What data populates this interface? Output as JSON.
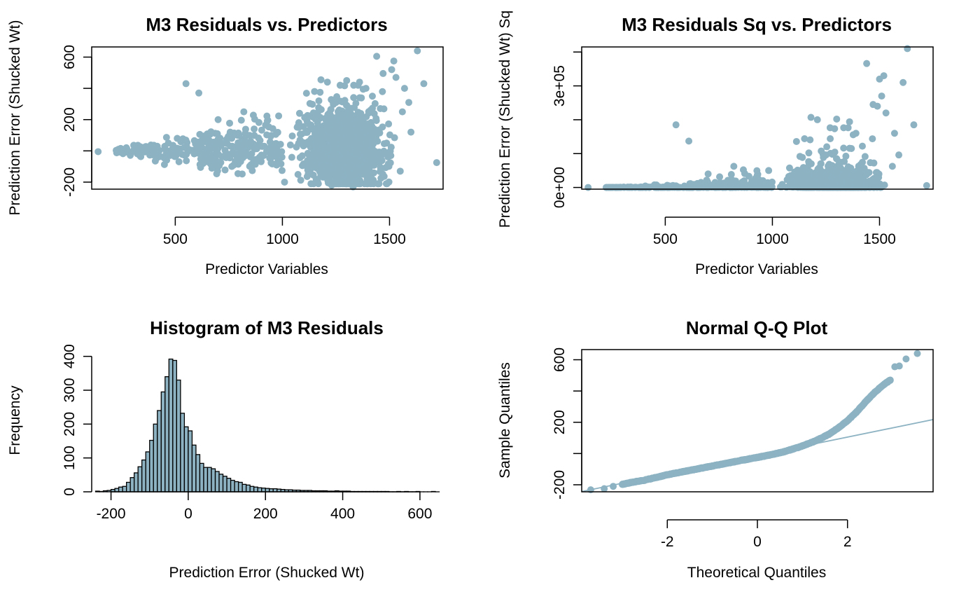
{
  "colors": {
    "point": "#8DB3C3",
    "bar_fill": "#8DB3C3",
    "axis": "#000000",
    "ref_line": "#8DB3C3"
  },
  "chart_data": [
    {
      "id": "p1",
      "type": "scatter",
      "title": "M3 Residuals vs. Predictors",
      "xlabel": "Predictor Variables",
      "ylabel": "Prediction Error (Shucked Wt)",
      "xlim": [
        110,
        1750
      ],
      "ylim": [
        -245,
        665
      ],
      "xticks": [
        500,
        1000,
        1500
      ],
      "xtick_labels": [
        "500",
        "1000",
        "1500"
      ],
      "yticks": [
        -200,
        0,
        200,
        400,
        600
      ],
      "ytick_labels": [
        "-200",
        "",
        "200",
        "",
        "600"
      ],
      "grid": false,
      "cloud": {
        "n": 4177,
        "x_range": [
          220,
          1640
        ],
        "x_mode": 1200,
        "spread_model": "sd = 5 + 0.11 * (x - 220)",
        "right_skew": true
      },
      "points": [
        {
          "x": 140,
          "y": -5
        },
        {
          "x": 550,
          "y": 430
        },
        {
          "x": 610,
          "y": 370
        },
        {
          "x": 700,
          "y": 200
        },
        {
          "x": 820,
          "y": 250
        },
        {
          "x": 1550,
          "y": -130
        },
        {
          "x": 1600,
          "y": 120
        },
        {
          "x": 1720,
          "y": -75
        },
        {
          "x": 1630,
          "y": 640
        },
        {
          "x": 1440,
          "y": 605
        },
        {
          "x": 1520,
          "y": 575
        },
        {
          "x": 1660,
          "y": 430
        },
        {
          "x": 1510,
          "y": 520
        },
        {
          "x": 1470,
          "y": 495
        },
        {
          "x": 1530,
          "y": 470
        },
        {
          "x": 1360,
          "y": 440
        },
        {
          "x": 1390,
          "y": 400
        },
        {
          "x": 1180,
          "y": 455
        },
        {
          "x": 1210,
          "y": 440
        },
        {
          "x": 1300,
          "y": 450
        },
        {
          "x": 1080,
          "y": 240
        },
        {
          "x": 1120,
          "y": 220
        },
        {
          "x": 1150,
          "y": 380
        },
        {
          "x": 1170,
          "y": 320
        },
        {
          "x": 1250,
          "y": 310
        },
        {
          "x": 1010,
          "y": -200
        },
        {
          "x": 1230,
          "y": -220
        },
        {
          "x": 1330,
          "y": -230
        },
        {
          "x": 1360,
          "y": -190
        },
        {
          "x": 1460,
          "y": -175
        },
        {
          "x": 1570,
          "y": 400
        },
        {
          "x": 1590,
          "y": 310
        },
        {
          "x": 1560,
          "y": 250
        },
        {
          "x": 1420,
          "y": 350
        }
      ]
    },
    {
      "id": "p2",
      "type": "scatter",
      "title": "M3 Residuals Sq vs. Predictors",
      "xlabel": "Predictor Variables",
      "ylabel": "Prediction Error (Shucked Wt) Sq",
      "xlim": [
        110,
        1750
      ],
      "ylim": [
        -5000,
        415000
      ],
      "xticks": [
        500,
        1000,
        1500
      ],
      "xtick_labels": [
        "500",
        "1000",
        "1500"
      ],
      "yticks": [
        0,
        100000,
        200000,
        300000,
        400000
      ],
      "ytick_labels": [
        "0e+00",
        "",
        "",
        "3e+05",
        ""
      ],
      "grid": false,
      "note": "squared residuals of panel 1",
      "points": [
        {
          "x": 1630,
          "y": 410000
        },
        {
          "x": 1440,
          "y": 366000
        },
        {
          "x": 1520,
          "y": 330000
        },
        {
          "x": 1610,
          "y": 310000
        },
        {
          "x": 1500,
          "y": 320000
        },
        {
          "x": 1660,
          "y": 185000
        },
        {
          "x": 1470,
          "y": 245000
        },
        {
          "x": 1530,
          "y": 220000
        },
        {
          "x": 1360,
          "y": 194000
        },
        {
          "x": 1390,
          "y": 160000
        },
        {
          "x": 1180,
          "y": 207000
        },
        {
          "x": 1210,
          "y": 200000
        },
        {
          "x": 1300,
          "y": 202000
        },
        {
          "x": 550,
          "y": 185000
        },
        {
          "x": 610,
          "y": 137000
        },
        {
          "x": 820,
          "y": 62500
        },
        {
          "x": 700,
          "y": 40000
        },
        {
          "x": 1150,
          "y": 144000
        },
        {
          "x": 1420,
          "y": 122000
        },
        {
          "x": 1570,
          "y": 160000
        },
        {
          "x": 1590,
          "y": 96000
        },
        {
          "x": 1250,
          "y": 96000
        },
        {
          "x": 1170,
          "y": 102000
        },
        {
          "x": 1080,
          "y": 57600
        },
        {
          "x": 1720,
          "y": 5600
        },
        {
          "x": 140,
          "y": 25
        },
        {
          "x": 1560,
          "y": 62500
        },
        {
          "x": 1490,
          "y": 240000
        },
        {
          "x": 1270,
          "y": 144000
        },
        {
          "x": 1510,
          "y": 270000
        }
      ]
    },
    {
      "id": "p3",
      "type": "bar",
      "subtype": "histogram",
      "title": "Histogram of M3 Residuals",
      "xlabel": "Prediction Error (Shucked Wt)",
      "ylabel": "Frequency",
      "bin_width": 10,
      "bin_start": -240,
      "xlim": [
        -250,
        660
      ],
      "ylim": [
        0,
        420
      ],
      "xticks": [
        -200,
        0,
        200,
        400,
        600
      ],
      "xtick_labels": [
        "-200",
        "0",
        "200",
        "400",
        "600"
      ],
      "yticks": [
        0,
        100,
        200,
        300,
        400
      ],
      "ytick_labels": [
        "0",
        "100",
        "200",
        "300",
        "400"
      ],
      "values": [
        2,
        1,
        3,
        4,
        7,
        10,
        14,
        16,
        28,
        42,
        56,
        74,
        94,
        118,
        152,
        200,
        240,
        295,
        340,
        392,
        388,
        330,
        232,
        192,
        180,
        138,
        110,
        84,
        72,
        72,
        68,
        60,
        52,
        46,
        40,
        34,
        30,
        28,
        22,
        20,
        16,
        14,
        12,
        11,
        10,
        9,
        9,
        8,
        7,
        6,
        6,
        5,
        5,
        4,
        4,
        4,
        3,
        3,
        3,
        3,
        2,
        2,
        3,
        2,
        2,
        2,
        1,
        1,
        1,
        1,
        1,
        1,
        1,
        1,
        1,
        1,
        0,
        0,
        1,
        0,
        1,
        0,
        0,
        1,
        0,
        0,
        0,
        1,
        0
      ]
    },
    {
      "id": "p4",
      "type": "scatter",
      "title": "Normal Q-Q Plot",
      "xlabel": "Theoretical Quantiles",
      "ylabel": "Sample Quantiles",
      "xlim": [
        -3.9,
        3.9
      ],
      "ylim": [
        -245,
        665
      ],
      "xticks": [
        -2,
        0,
        2
      ],
      "xtick_labels": [
        "-2",
        "0",
        "2"
      ],
      "yticks": [
        -200,
        0,
        200,
        400,
        600
      ],
      "ytick_labels": [
        "-200",
        "",
        "200",
        "",
        "600"
      ],
      "grid": false,
      "reference_line": {
        "intercept": -13,
        "slope": 59
      },
      "quantile_curve": [
        {
          "x": -3.7,
          "y": -232
        },
        {
          "x": -3.4,
          "y": -225
        },
        {
          "x": -3.2,
          "y": -210
        },
        {
          "x": -3.0,
          "y": -198
        },
        {
          "x": -2.8,
          "y": -185
        },
        {
          "x": -2.5,
          "y": -170
        },
        {
          "x": -2.2,
          "y": -150
        },
        {
          "x": -2.0,
          "y": -136
        },
        {
          "x": -1.5,
          "y": -108
        },
        {
          "x": -1.0,
          "y": -80
        },
        {
          "x": -0.5,
          "y": -52
        },
        {
          "x": 0,
          "y": -25
        },
        {
          "x": 0.3,
          "y": -8
        },
        {
          "x": 0.6,
          "y": 12
        },
        {
          "x": 1.0,
          "y": 48
        },
        {
          "x": 1.3,
          "y": 82
        },
        {
          "x": 1.6,
          "y": 125
        },
        {
          "x": 1.8,
          "y": 165
        },
        {
          "x": 2.0,
          "y": 210
        },
        {
          "x": 2.2,
          "y": 265
        },
        {
          "x": 2.4,
          "y": 330
        },
        {
          "x": 2.6,
          "y": 390
        },
        {
          "x": 2.8,
          "y": 440
        },
        {
          "x": 2.95,
          "y": 470
        },
        {
          "x": 3.05,
          "y": 555
        },
        {
          "x": 3.15,
          "y": 560
        },
        {
          "x": 3.3,
          "y": 605
        },
        {
          "x": 3.55,
          "y": 640
        }
      ]
    }
  ]
}
